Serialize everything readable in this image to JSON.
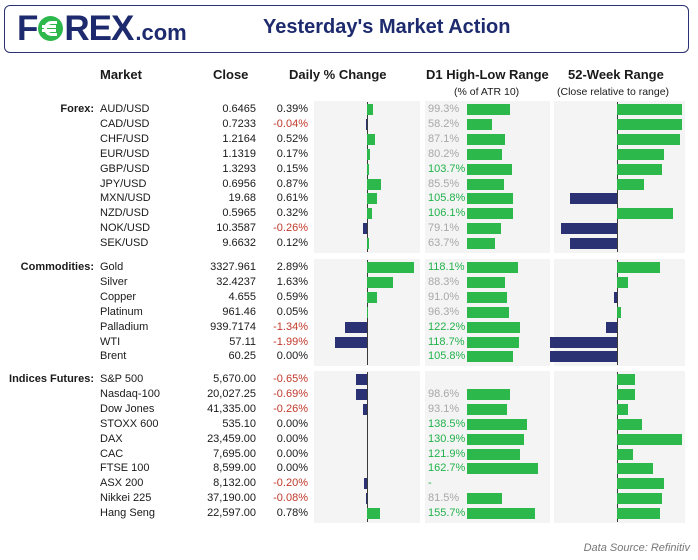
{
  "header": {
    "logo_text_left": "F",
    "logo_text_right": "REX",
    "logo_suffix": ".com",
    "title": "Yesterday's Market Action"
  },
  "columns": {
    "market": "Market",
    "close": "Close",
    "daily": "Daily % Change",
    "d1": "D1 High-Low Range",
    "d1_sub": "(% of ATR 10)",
    "w52": "52-Week Range",
    "w52_sub": "(Close relative to range)"
  },
  "colors": {
    "positive": "#2db84c",
    "negative": "#2b3274",
    "neg_text": "#c0392b",
    "brand": "#1d2a6e"
  },
  "chart_data": {
    "type": "table",
    "title": "Yesterday's Market Action",
    "groups": [
      {
        "label": "Forex:",
        "rows": [
          {
            "market": "AUD/USD",
            "close": "0.6465",
            "daily": "0.39%",
            "daily_val": 0.39,
            "d1": "99.3%",
            "d1_val": 99.3,
            "w52": 0.72
          },
          {
            "market": "CAD/USD",
            "close": "0.7233",
            "daily": "-0.04%",
            "daily_val": -0.04,
            "d1": "58.2%",
            "d1_val": 58.2,
            "w52": 0.72
          },
          {
            "market": "CHF/USD",
            "close": "1.2164",
            "daily": "0.52%",
            "daily_val": 0.52,
            "d1": "87.1%",
            "d1_val": 87.1,
            "w52": 0.7
          },
          {
            "market": "EUR/USD",
            "close": "1.1319",
            "daily": "0.17%",
            "daily_val": 0.17,
            "d1": "80.2%",
            "d1_val": 80.2,
            "w52": 0.52
          },
          {
            "market": "GBP/USD",
            "close": "1.3293",
            "daily": "0.15%",
            "daily_val": 0.15,
            "d1": "103.7%",
            "d1_val": 103.7,
            "w52": 0.5
          },
          {
            "market": "JPY/USD",
            "close": "0.6956",
            "daily": "0.87%",
            "daily_val": 0.87,
            "d1": "85.5%",
            "d1_val": 85.5,
            "w52": 0.3
          },
          {
            "market": "MXN/USD",
            "close": "19.68",
            "daily": "0.61%",
            "daily_val": 0.61,
            "d1": "105.8%",
            "d1_val": 105.8,
            "w52": -0.52
          },
          {
            "market": "NZD/USD",
            "close": "0.5965",
            "daily": "0.32%",
            "daily_val": 0.32,
            "d1": "106.1%",
            "d1_val": 106.1,
            "w52": 0.62
          },
          {
            "market": "NOK/USD",
            "close": "10.3587",
            "daily": "-0.26%",
            "daily_val": -0.26,
            "d1": "79.1%",
            "d1_val": 79.1,
            "w52": -0.62
          },
          {
            "market": "SEK/USD",
            "close": "9.6632",
            "daily": "0.12%",
            "daily_val": 0.12,
            "d1": "63.7%",
            "d1_val": 63.7,
            "w52": -0.52
          }
        ]
      },
      {
        "label": "Commodities:",
        "rows": [
          {
            "market": "Gold",
            "close": "3327.961",
            "daily": "2.89%",
            "daily_val": 2.89,
            "d1": "118.1%",
            "d1_val": 118.1,
            "w52": 0.48
          },
          {
            "market": "Silver",
            "close": "32.4237",
            "daily": "1.63%",
            "daily_val": 1.63,
            "d1": "88.3%",
            "d1_val": 88.3,
            "w52": 0.12
          },
          {
            "market": "Copper",
            "close": "4.655",
            "daily": "0.59%",
            "daily_val": 0.59,
            "d1": "91.0%",
            "d1_val": 91.0,
            "w52": -0.03
          },
          {
            "market": "Platinum",
            "close": "961.46",
            "daily": "0.05%",
            "daily_val": 0.05,
            "d1": "96.3%",
            "d1_val": 96.3,
            "w52": 0.04
          },
          {
            "market": "Palladium",
            "close": "939.7174",
            "daily": "-1.34%",
            "daily_val": -1.34,
            "d1": "122.2%",
            "d1_val": 122.2,
            "w52": -0.12
          },
          {
            "market": "WTI",
            "close": "57.11",
            "daily": "-1.99%",
            "daily_val": -1.99,
            "d1": "118.7%",
            "d1_val": 118.7,
            "w52": -0.74
          },
          {
            "market": "Brent",
            "close": "60.25",
            "daily": "0.00%",
            "daily_val": 0.0,
            "d1": "105.8%",
            "d1_val": 105.8,
            "w52": -0.74
          }
        ]
      },
      {
        "label": "Indices Futures:",
        "rows": [
          {
            "market": "S&P 500",
            "close": "5,670.00",
            "daily": "-0.65%",
            "daily_val": -0.65,
            "d1": "",
            "d1_val": 0,
            "w52": 0.2
          },
          {
            "market": "Nasdaq-100",
            "close": "20,027.25",
            "daily": "-0.69%",
            "daily_val": -0.69,
            "d1": "98.6%",
            "d1_val": 98.6,
            "w52": 0.2
          },
          {
            "market": "Dow Jones",
            "close": "41,335.00",
            "daily": "-0.26%",
            "daily_val": -0.26,
            "d1": "93.1%",
            "d1_val": 93.1,
            "w52": 0.12
          },
          {
            "market": "STOXX 600",
            "close": "535.10",
            "daily": "0.00%",
            "daily_val": 0.0,
            "d1": "138.5%",
            "d1_val": 138.5,
            "w52": 0.28
          },
          {
            "market": "DAX",
            "close": "23,459.00",
            "daily": "0.00%",
            "daily_val": 0.0,
            "d1": "130.9%",
            "d1_val": 130.9,
            "w52": 0.72
          },
          {
            "market": "CAC",
            "close": "7,695.00",
            "daily": "0.00%",
            "daily_val": 0.0,
            "d1": "121.9%",
            "d1_val": 121.9,
            "w52": 0.18
          },
          {
            "market": "FTSE 100",
            "close": "8,599.00",
            "daily": "0.00%",
            "daily_val": 0.0,
            "d1": "162.7%",
            "d1_val": 162.7,
            "w52": 0.4
          },
          {
            "market": "ASX 200",
            "close": "8,132.00",
            "daily": "-0.20%",
            "daily_val": -0.2,
            "d1": "-",
            "d1_val": 0,
            "w52": 0.52
          },
          {
            "market": "Nikkei 225",
            "close": "37,190.00",
            "daily": "-0.08%",
            "daily_val": -0.08,
            "d1": "81.5%",
            "d1_val": 81.5,
            "w52": 0.5
          },
          {
            "market": "Hang Seng",
            "close": "22,597.00",
            "daily": "0.78%",
            "daily_val": 0.78,
            "d1": "155.7%",
            "d1_val": 155.7,
            "w52": 0.48
          }
        ]
      }
    ]
  },
  "footer": "Data Source: Refinitiv"
}
